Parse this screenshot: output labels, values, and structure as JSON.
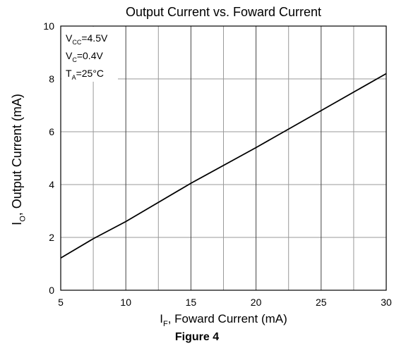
{
  "chart_data": {
    "type": "line",
    "title": "Output Current vs. Foward Current",
    "xlabel": {
      "main": "I",
      "sub": "F",
      "rest": ", Foward Current (mA)"
    },
    "ylabel": {
      "main": "I",
      "sub": "O",
      "rest": ", Output Current (mA)"
    },
    "xlim": [
      5,
      30
    ],
    "ylim": [
      0,
      10
    ],
    "xticks": [
      5,
      10,
      15,
      20,
      25,
      30
    ],
    "yticks": [
      0,
      2,
      4,
      6,
      8,
      10
    ],
    "x_minor_step": 2.5,
    "grid": true,
    "series": [
      {
        "x": [
          5,
          7.5,
          10,
          15,
          20,
          25,
          30
        ],
        "y": [
          1.22,
          1.95,
          2.6,
          4.05,
          5.4,
          6.8,
          8.2
        ],
        "color": "#000000"
      }
    ],
    "conditions": [
      {
        "main": "V",
        "sub": "CC",
        "rest": "=4.5V"
      },
      {
        "main": "V",
        "sub": "C",
        "rest": "=0.4V"
      },
      {
        "main": "T",
        "sub": "A",
        "rest": "=25°C"
      }
    ]
  },
  "caption": "Figure 4"
}
